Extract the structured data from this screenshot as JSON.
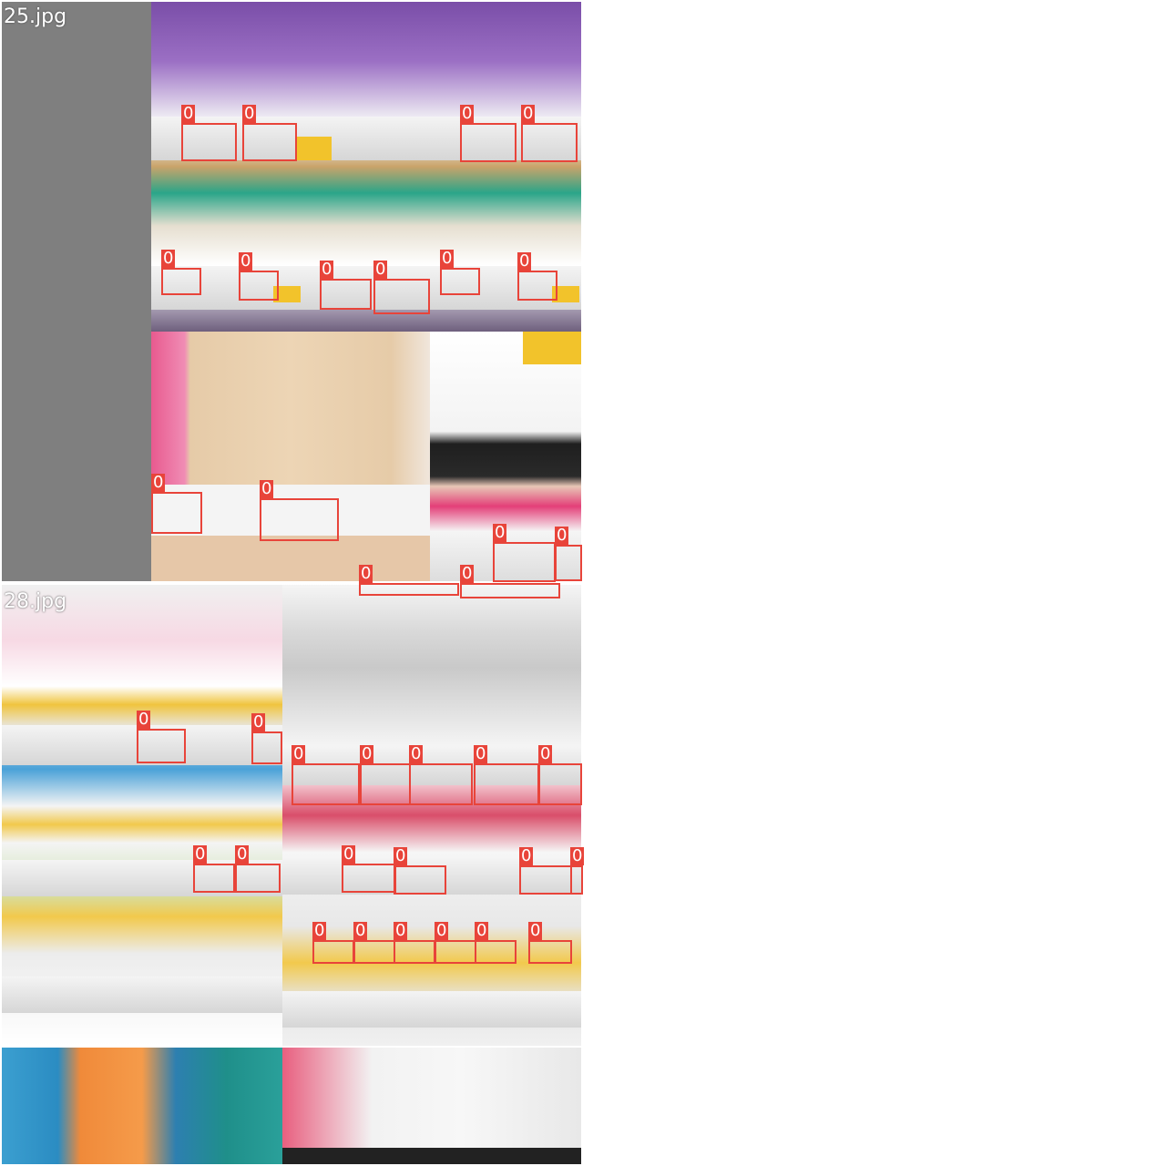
{
  "mosaic": {
    "top": {
      "filename": "25.jpg"
    },
    "bottom": {
      "filename": "28.jpg"
    }
  },
  "colors": {
    "box": "#e8443a",
    "padding": "#7f7f7f",
    "background": "#ffffff"
  },
  "boxes_top": [
    {
      "cls": "0"
    },
    {
      "cls": "0"
    },
    {
      "cls": "0"
    },
    {
      "cls": "0"
    },
    {
      "cls": "0"
    },
    {
      "cls": "0"
    },
    {
      "cls": "0"
    },
    {
      "cls": "0"
    },
    {
      "cls": "0"
    },
    {
      "cls": "0"
    },
    {
      "cls": "0"
    },
    {
      "cls": "0"
    },
    {
      "cls": "0"
    },
    {
      "cls": "0"
    },
    {
      "cls": "0"
    },
    {
      "cls": "0"
    }
  ],
  "boxes_bottom": [
    {
      "cls": "0"
    },
    {
      "cls": "0"
    },
    {
      "cls": "0"
    },
    {
      "cls": "0"
    },
    {
      "cls": "0"
    },
    {
      "cls": "0"
    },
    {
      "cls": "0"
    },
    {
      "cls": "0"
    },
    {
      "cls": "0"
    },
    {
      "cls": "0"
    },
    {
      "cls": "0"
    },
    {
      "cls": "0"
    },
    {
      "cls": "0"
    },
    {
      "cls": "0"
    },
    {
      "cls": "0"
    },
    {
      "cls": "0"
    },
    {
      "cls": "0"
    },
    {
      "cls": "0"
    },
    {
      "cls": "0"
    },
    {
      "cls": "0"
    }
  ]
}
